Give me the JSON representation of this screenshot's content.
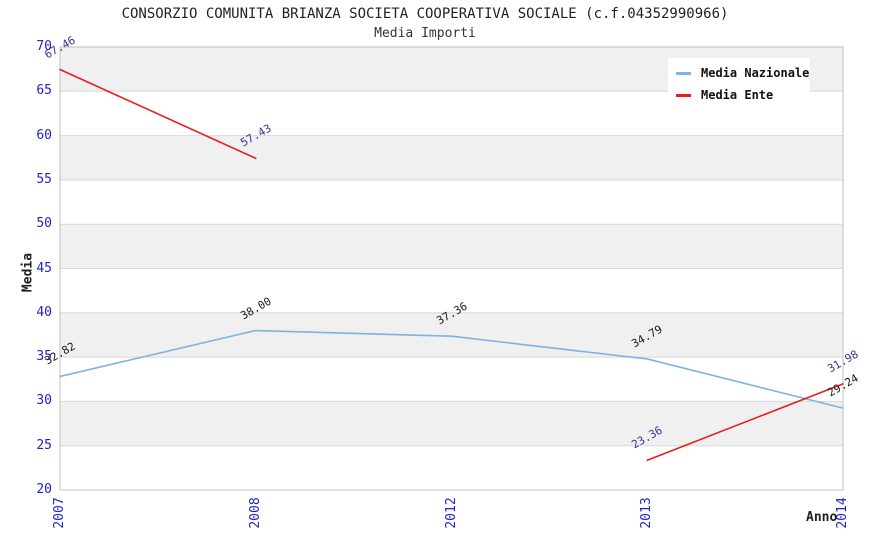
{
  "chart_data": {
    "type": "line",
    "title": "CONSORZIO COMUNITA BRIANZA SOCIETA COOPERATIVA SOCIALE (c.f.04352990966)",
    "subtitle": "Media Importi",
    "xlabel": "Anno",
    "ylabel": "Media",
    "categories": [
      "2007",
      "2008",
      "2012",
      "2013",
      "2014"
    ],
    "ylim": [
      20,
      70
    ],
    "ytick_step": 5,
    "yticks": [
      20,
      25,
      30,
      35,
      40,
      45,
      50,
      55,
      60,
      65,
      70
    ],
    "grid": "alternating-horizontal-bands",
    "legend_position": "top-right",
    "series": [
      {
        "name": "Media Nazionale",
        "color": "#7eb3e2",
        "label_color": "#1a1a1a",
        "values": [
          32.82,
          38.0,
          37.36,
          34.79,
          29.24
        ],
        "labels": [
          "32.82",
          "38.00",
          "37.36",
          "34.79",
          "29.24"
        ]
      },
      {
        "name": "Media Ente",
        "color": "#ed1c1c",
        "label_color": "#333399",
        "values": [
          67.46,
          57.43,
          null,
          23.36,
          31.98
        ],
        "labels": [
          "67.46",
          "57.43",
          null,
          "23.36",
          "31.98"
        ]
      }
    ],
    "colors": {
      "axis_tick_text": "#2323c8",
      "band_fill": "#f0f0f0",
      "gridline": "#d8d8d8",
      "frame": "#c0c0c0",
      "title_text": "#222222"
    }
  }
}
